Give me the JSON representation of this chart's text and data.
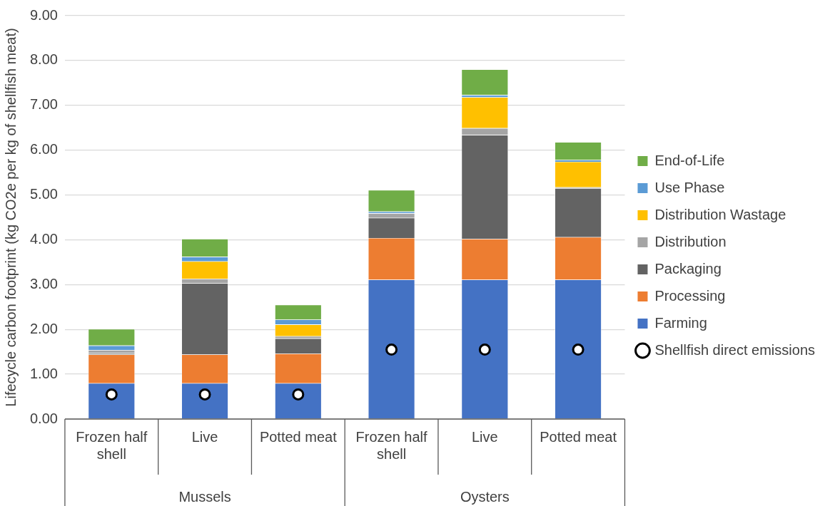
{
  "chart_data": {
    "type": "bar",
    "stacked": true,
    "ylabel": "Lifecycle carbon footprint (kg CO2e per kg of shellfish meat)",
    "categories": [
      "Frozen half shell",
      "Live",
      "Potted meat",
      "Frozen half shell",
      "Live",
      "Potted meat"
    ],
    "annotations": [
      "Mussels",
      "Oysters"
    ],
    "series": [
      {
        "name": "Farming",
        "color": "#4472c4",
        "values": [
          0.8,
          0.8,
          0.8,
          3.11,
          3.11,
          3.11
        ]
      },
      {
        "name": "Processing",
        "color": "#ed7d31",
        "values": [
          0.64,
          0.64,
          0.66,
          0.93,
          0.91,
          0.95
        ]
      },
      {
        "name": "Packaging",
        "color": "#636363",
        "values": [
          0.03,
          1.59,
          0.34,
          0.45,
          2.32,
          1.09
        ]
      },
      {
        "name": "Distribution",
        "color": "#a5a5a5",
        "values": [
          0.07,
          0.1,
          0.05,
          0.1,
          0.15,
          0.02
        ]
      },
      {
        "name": "Distribution Wastage",
        "color": "#ffc000",
        "values": [
          null,
          0.39,
          0.26,
          0.0,
          0.69,
          0.57
        ]
      },
      {
        "name": "Use Phase",
        "color": "#5b9bd5",
        "values": [
          0.1,
          0.1,
          0.11,
          0.04,
          0.05,
          0.04
        ]
      },
      {
        "name": "End-of-Life",
        "color": "#70ad47",
        "values": [
          0.37,
          0.4,
          0.33,
          0.48,
          0.57,
          0.4
        ]
      },
      {
        "name": "Shellfish direct emissions",
        "type": "scatter",
        "color": "#000000",
        "marker": "circle",
        "values": [
          0.55,
          0.55,
          0.55,
          1.55,
          1.55,
          1.55
        ]
      }
    ],
    "ylim": [
      0,
      9
    ],
    "yticks": [
      {
        "value": 0,
        "label": "0.00"
      },
      {
        "value": 1,
        "label": "1.00"
      },
      {
        "value": 2,
        "label": "2.00"
      },
      {
        "value": 3,
        "label": "3.00"
      },
      {
        "value": 4,
        "label": "4.00"
      },
      {
        "value": 5,
        "label": "5.00"
      },
      {
        "value": 6,
        "label": "6.00"
      },
      {
        "value": 7,
        "label": "7.00"
      },
      {
        "value": 8,
        "label": "8.00"
      },
      {
        "value": 9,
        "label": "9.00"
      }
    ],
    "grid": "y",
    "legend": "right"
  }
}
